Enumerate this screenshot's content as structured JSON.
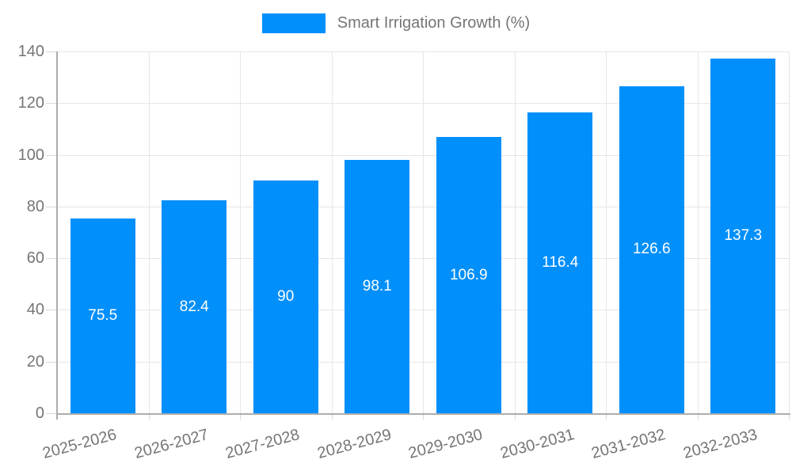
{
  "chart_data": {
    "type": "bar",
    "title": "Smart Irrigation Growth (%)",
    "categories": [
      "2025-2026",
      "2026-2027",
      "2027-2028",
      "2028-2029",
      "2029-2030",
      "2030-2031",
      "2031-2032",
      "2032-2033"
    ],
    "values": [
      75.5,
      82.4,
      90,
      98.1,
      106.9,
      116.4,
      126.6,
      137.3
    ],
    "value_labels": [
      "75.5",
      "82.4",
      "90",
      "98.1",
      "106.9",
      "116.4",
      "126.6",
      "137.3"
    ],
    "xlabel": "",
    "ylabel": "",
    "ylim": [
      0,
      140
    ],
    "yticks": [
      0,
      20,
      40,
      60,
      80,
      100,
      120,
      140
    ],
    "grid": "horizontal and vertical category boundaries",
    "legend_position": "top-center",
    "colors": {
      "bar": "#008FFB",
      "bar_label": "#FFFFFF",
      "axis_text": "#757575",
      "legend_text": "#757575",
      "gridline": "#E6E6E6",
      "tick": "#D9D9D9",
      "axis_line": "#ADADAD",
      "background": "#FFFFFF"
    }
  }
}
